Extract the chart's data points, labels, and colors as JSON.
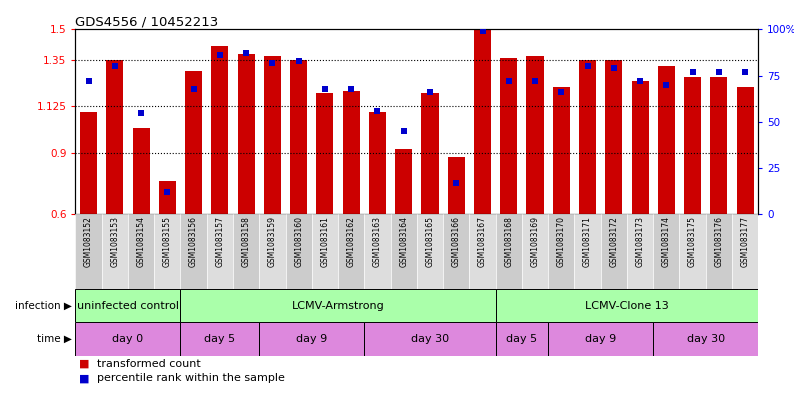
{
  "title": "GDS4556 / 10452213",
  "samples": [
    "GSM1083152",
    "GSM1083153",
    "GSM1083154",
    "GSM1083155",
    "GSM1083156",
    "GSM1083157",
    "GSM1083158",
    "GSM1083159",
    "GSM1083160",
    "GSM1083161",
    "GSM1083162",
    "GSM1083163",
    "GSM1083164",
    "GSM1083165",
    "GSM1083166",
    "GSM1083167",
    "GSM1083168",
    "GSM1083169",
    "GSM1083170",
    "GSM1083171",
    "GSM1083172",
    "GSM1083173",
    "GSM1083174",
    "GSM1083175",
    "GSM1083176",
    "GSM1083177"
  ],
  "bar_values": [
    1.1,
    1.35,
    1.02,
    0.76,
    1.3,
    1.42,
    1.38,
    1.37,
    1.35,
    1.19,
    1.2,
    1.1,
    0.92,
    1.19,
    0.88,
    1.5,
    1.36,
    1.37,
    1.22,
    1.35,
    1.35,
    1.25,
    1.32,
    1.27,
    1.27,
    1.22
  ],
  "percentile_values": [
    72,
    80,
    55,
    12,
    68,
    86,
    87,
    82,
    83,
    68,
    68,
    56,
    45,
    66,
    17,
    99,
    72,
    72,
    66,
    80,
    79,
    72,
    70,
    77,
    77,
    77
  ],
  "ylim_left": [
    0.6,
    1.5
  ],
  "ylim_right": [
    0,
    100
  ],
  "yticks_left": [
    0.6,
    0.9,
    1.125,
    1.35,
    1.5
  ],
  "ytick_labels_left": [
    "0.6",
    "0.9",
    "1.125",
    "1.35",
    "1.5"
  ],
  "yticks_right": [
    0,
    25,
    50,
    75,
    100
  ],
  "ytick_labels_right": [
    "0",
    "25",
    "50",
    "75",
    "100%"
  ],
  "hlines": [
    0.9,
    1.125,
    1.35
  ],
  "bar_color": "#cc0000",
  "bar_baseline": 0.6,
  "dot_color": "#0000cc",
  "infection_groups": [
    {
      "label": "uninfected control",
      "start": 0,
      "end": 4,
      "color": "#aaffaa"
    },
    {
      "label": "LCMV-Armstrong",
      "start": 4,
      "end": 16,
      "color": "#aaffaa"
    },
    {
      "label": "LCMV-Clone 13",
      "start": 16,
      "end": 26,
      "color": "#aaffaa"
    }
  ],
  "time_groups": [
    {
      "label": "day 0",
      "start": 0,
      "end": 4,
      "color": "#dd88dd"
    },
    {
      "label": "day 5",
      "start": 4,
      "end": 7,
      "color": "#dd88dd"
    },
    {
      "label": "day 9",
      "start": 7,
      "end": 11,
      "color": "#dd88dd"
    },
    {
      "label": "day 30",
      "start": 11,
      "end": 16,
      "color": "#dd88dd"
    },
    {
      "label": "day 5",
      "start": 16,
      "end": 18,
      "color": "#dd88dd"
    },
    {
      "label": "day 9",
      "start": 18,
      "end": 22,
      "color": "#dd88dd"
    },
    {
      "label": "day 30",
      "start": 22,
      "end": 26,
      "color": "#dd88dd"
    }
  ],
  "legend_items": [
    {
      "label": "transformed count",
      "color": "#cc0000"
    },
    {
      "label": "percentile rank within the sample",
      "color": "#0000cc"
    }
  ],
  "bg_color": "#ffffff",
  "cell_bg": "#cccccc",
  "cell_bg_alt": "#dddddd"
}
